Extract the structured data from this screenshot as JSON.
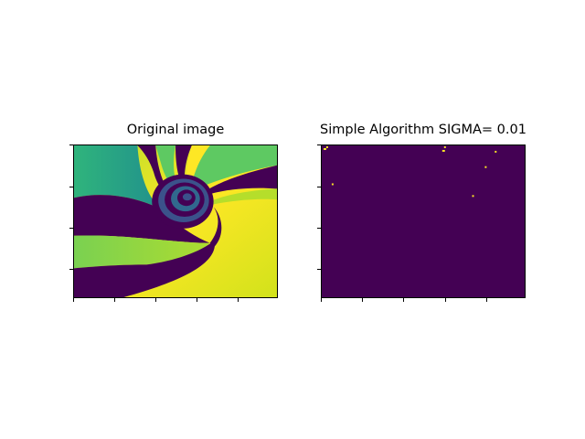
{
  "figure": {
    "left_panel": {
      "title": "Original image"
    },
    "right_panel": {
      "title": "Simple Algorithm SIGMA= 0.01",
      "background_color": "#440154",
      "dot_color": "#fde725",
      "dot_count": 8
    },
    "colormap": [
      "#440154",
      "#3b528b",
      "#21918c",
      "#5ec962",
      "#fde725"
    ]
  }
}
